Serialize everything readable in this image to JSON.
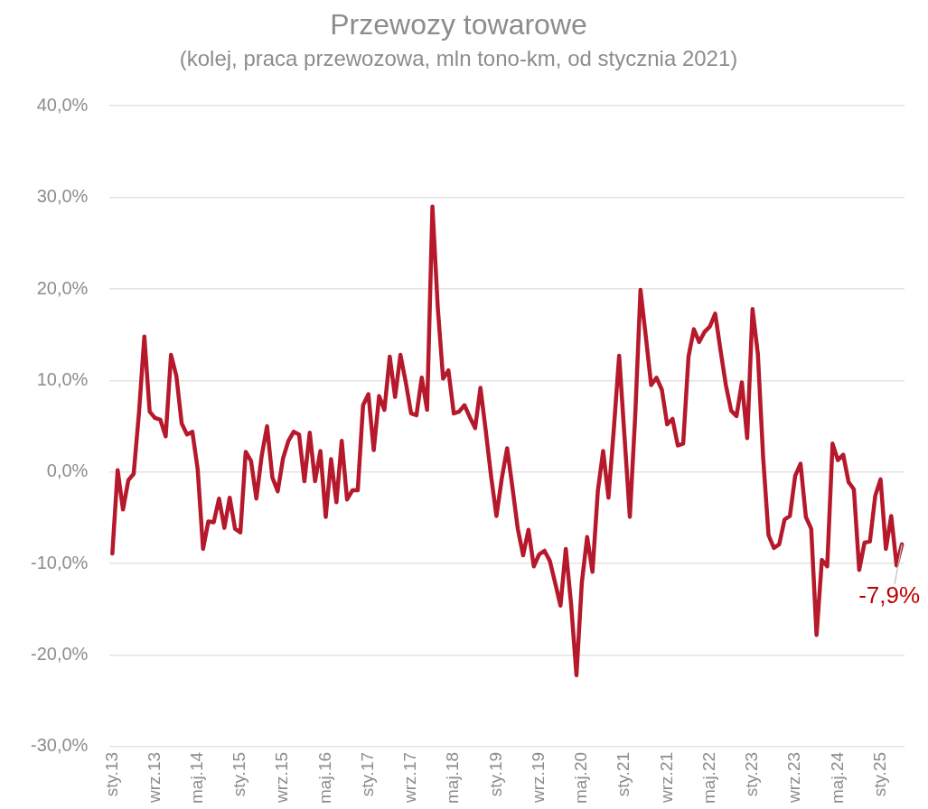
{
  "chart_data": {
    "type": "line",
    "title": "Przewozy towarowe",
    "subtitle": "(kolej, praca przewozowa, mln tono-km, od stycznia 2021)",
    "categories": [
      "sty.13",
      null,
      null,
      null,
      null,
      null,
      null,
      null,
      "wrz.13",
      null,
      null,
      null,
      null,
      null,
      null,
      null,
      "maj.14",
      null,
      null,
      null,
      null,
      null,
      null,
      null,
      "sty.15",
      null,
      null,
      null,
      null,
      null,
      null,
      null,
      "wrz.15",
      null,
      null,
      null,
      null,
      null,
      null,
      null,
      "maj.16",
      null,
      null,
      null,
      null,
      null,
      null,
      null,
      "sty.17",
      null,
      null,
      null,
      null,
      null,
      null,
      null,
      "wrz.17",
      null,
      null,
      null,
      null,
      null,
      null,
      null,
      "maj.18",
      null,
      null,
      null,
      null,
      null,
      null,
      null,
      "sty.19",
      null,
      null,
      null,
      null,
      null,
      null,
      null,
      "wrz.19",
      null,
      null,
      null,
      null,
      null,
      null,
      null,
      "maj.20",
      null,
      null,
      null,
      null,
      null,
      null,
      null,
      "sty.21",
      null,
      null,
      null,
      null,
      null,
      null,
      null,
      "wrz.21",
      null,
      null,
      null,
      null,
      null,
      null,
      null,
      "maj.22",
      null,
      null,
      null,
      null,
      null,
      null,
      null,
      "sty.23",
      null,
      null,
      null,
      null,
      null,
      null,
      null,
      "wrz.23",
      null,
      null,
      null,
      null,
      null,
      null,
      null,
      "maj.24",
      null,
      null,
      null,
      null,
      null,
      null,
      null,
      "sty.25",
      null,
      null,
      null,
      null
    ],
    "series": [
      {
        "color": "#b5192b",
        "values": [
          -8.9,
          0.2,
          -4.1,
          -0.9,
          -0.2,
          6.5,
          14.8,
          6.6,
          5.9,
          5.7,
          3.9,
          12.8,
          10.5,
          5.3,
          4.1,
          4.4,
          0.3,
          -8.4,
          -5.4,
          -5.5,
          -2.9,
          -6.1,
          -2.8,
          -6.2,
          -6.6,
          2.2,
          1.2,
          -2.9,
          1.8,
          5.0,
          -0.6,
          -2.1,
          1.5,
          3.4,
          4.4,
          4.1,
          -1.0,
          4.3,
          -1.0,
          2.3,
          -4.9,
          1.4,
          -3.3,
          3.4,
          -3.0,
          -2.0,
          -2.0,
          7.3,
          8.5,
          2.4,
          8.3,
          6.8,
          12.6,
          8.2,
          12.8,
          9.8,
          6.4,
          6.2,
          10.3,
          6.8,
          29.0,
          18.0,
          10.2,
          11.1,
          6.4,
          6.6,
          7.3,
          6.0,
          4.8,
          9.2,
          4.5,
          -0.5,
          -4.8,
          -0.7,
          2.6,
          -1.7,
          -6.2,
          -9.1,
          -6.3,
          -10.3,
          -9.0,
          -8.6,
          -9.7,
          -12.1,
          -14.6,
          -8.4,
          -14.5,
          -22.2,
          -12.1,
          -7.1,
          -10.9,
          -2.1,
          2.3,
          -2.8,
          4.7,
          12.7,
          3.9,
          -4.9,
          6.0,
          19.9,
          14.8,
          9.5,
          10.3,
          9.0,
          5.2,
          5.8,
          2.9,
          3.1,
          12.6,
          15.6,
          14.2,
          15.3,
          15.9,
          17.3,
          13.3,
          9.5,
          6.7,
          6.1,
          9.8,
          3.7,
          17.8,
          12.9,
          1.5,
          -6.9,
          -8.3,
          -7.9,
          -5.2,
          -4.8,
          -0.4,
          0.9,
          -4.9,
          -6.2,
          -17.8,
          -9.6,
          -10.3,
          3.1,
          1.3,
          1.9,
          -1.1,
          -1.9,
          -10.7,
          -7.7,
          -7.6,
          -2.6,
          -0.8,
          -8.4,
          -4.8,
          -10.2,
          -7.9
        ]
      }
    ],
    "ylim": [
      -30,
      40
    ],
    "yticks": [
      {
        "value": -30,
        "label": "-30,0%"
      },
      {
        "value": -20,
        "label": "-20,0%"
      },
      {
        "value": -10,
        "label": "-10,0%"
      },
      {
        "value": 0,
        "label": "0,0%"
      },
      {
        "value": 10,
        "label": "10,0%"
      },
      {
        "value": 20,
        "label": "20,0%"
      },
      {
        "value": 30,
        "label": "30,0%"
      },
      {
        "value": 40,
        "label": "40,0%"
      }
    ],
    "grid": "y",
    "legend": false,
    "marker": "none",
    "line_style": "solid",
    "annotations": [
      {
        "text": "-7,9%",
        "y": -7.9
      }
    ]
  }
}
